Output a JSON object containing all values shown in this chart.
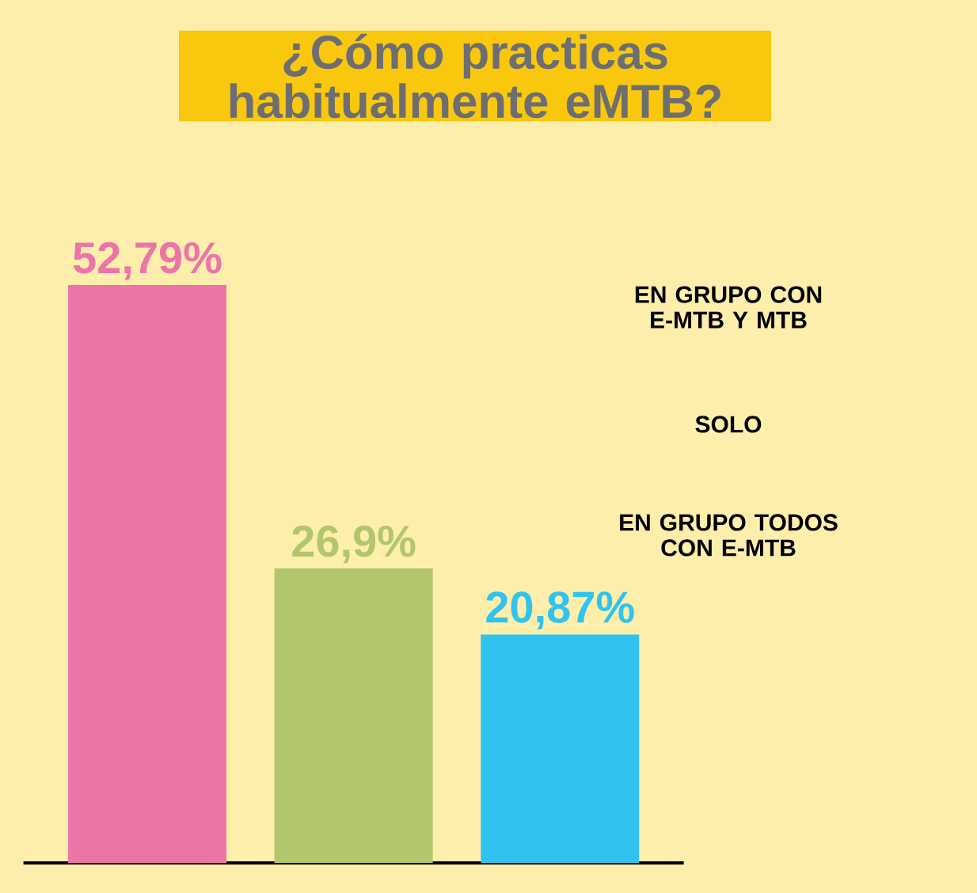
{
  "chart_data": {
    "type": "bar",
    "title": "¿Cómo practicas habitualmente eMTB?",
    "categories": [
      null,
      null,
      null
    ],
    "values": [
      52.79,
      26.9,
      20.87
    ],
    "colors": [
      "#ec75a8",
      "#b2c66b",
      "#31c3ef"
    ],
    "value_labels": [
      "52,79%",
      "26,9%",
      "20,87%"
    ],
    "annotations": [
      "EN GRUPO CON E-MTB Y MTB",
      "SOLO",
      "EN GRUPO TODOS CON E-MTB"
    ]
  }
}
